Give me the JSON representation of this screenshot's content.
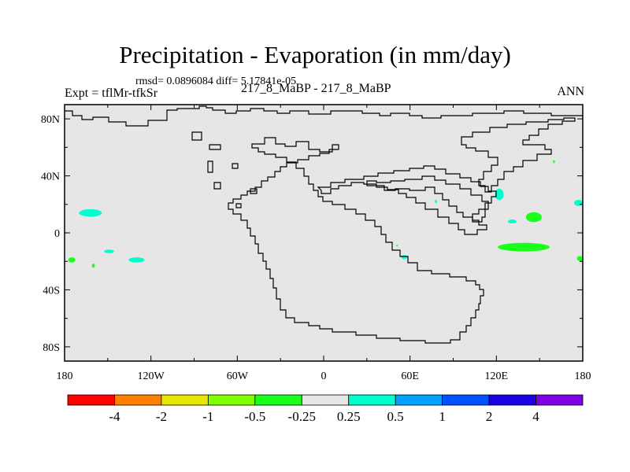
{
  "chart_data": {
    "type": "heatmap",
    "title": "Precipitation - Evaporation (in mm/day)",
    "stats_line": "rmsd= 0.0896084 diff= 5.17841e-05",
    "left_label": "Expt = tflMr-tfkSr",
    "center_label": "217_8_MaBP - 217_8_MaBP",
    "right_label": "ANN",
    "x_axis": {
      "range": [
        -180,
        180
      ],
      "ticks": [
        {
          "v": -180,
          "label": "180"
        },
        {
          "v": -120,
          "label": "120W"
        },
        {
          "v": -60,
          "label": "60W"
        },
        {
          "v": 0,
          "label": "0"
        },
        {
          "v": 60,
          "label": "60E"
        },
        {
          "v": 120,
          "label": "120E"
        },
        {
          "v": 180,
          "label": "180"
        }
      ]
    },
    "y_axis": {
      "range": [
        -90,
        90
      ],
      "ticks": [
        {
          "v": 80,
          "label": "80N"
        },
        {
          "v": 40,
          "label": "40N"
        },
        {
          "v": 0,
          "label": "0"
        },
        {
          "v": -40,
          "label": "40S"
        },
        {
          "v": -80,
          "label": "80S"
        }
      ]
    },
    "background_color": "#e6e6e6",
    "colorbar": {
      "colors": [
        "#ff0000",
        "#ff8000",
        "#e6e600",
        "#80ff00",
        "#1aff1a",
        "#e6e6e6",
        "#00ffcc",
        "#00a0ff",
        "#0050ff",
        "#1a00e6",
        "#8000e6"
      ],
      "labels": [
        "-4",
        "-2",
        "-1",
        "-0.5",
        "-0.25",
        "0.25",
        "0.5",
        "1",
        "2",
        "4"
      ]
    },
    "anomalies": [
      {
        "lon": -162,
        "lat": 14,
        "dlon": 8,
        "dlat": 2.6,
        "color": "#00ffcc"
      },
      {
        "lon": -175,
        "lat": -19,
        "dlon": 2.5,
        "dlat": 1.8,
        "color": "#1aff1a"
      },
      {
        "lon": -160,
        "lat": -23,
        "dlon": 1,
        "dlat": 1.5,
        "color": "#1aff1a"
      },
      {
        "lon": -149,
        "lat": -13,
        "dlon": 3.5,
        "dlat": 1.3,
        "color": "#00ffcc"
      },
      {
        "lon": -130,
        "lat": -19,
        "dlon": 5.5,
        "dlat": 1.8,
        "color": "#00ffcc"
      },
      {
        "lon": 56,
        "lat": -17,
        "dlon": 2,
        "dlat": 1.5,
        "color": "#00ffcc"
      },
      {
        "lon": 78,
        "lat": 22,
        "dlon": 0.7,
        "dlat": 1.2,
        "color": "#00ffcc"
      },
      {
        "lon": 122,
        "lat": 27,
        "dlon": 3,
        "dlat": 4,
        "color": "#00ffcc"
      },
      {
        "lon": 131,
        "lat": 8,
        "dlon": 3,
        "dlat": 1.4,
        "color": "#00ffcc"
      },
      {
        "lon": 146,
        "lat": 11,
        "dlon": 5.5,
        "dlat": 3.5,
        "color": "#1aff1a"
      },
      {
        "lon": 139,
        "lat": -10,
        "dlon": 18,
        "dlat": 3,
        "color": "#1aff1a"
      },
      {
        "lon": 177,
        "lat": 21,
        "dlon": 3,
        "dlat": 2.2,
        "color": "#00ffcc"
      },
      {
        "lon": 178,
        "lat": -18,
        "dlon": 2,
        "dlat": 1.8,
        "color": "#1aff1a"
      },
      {
        "lon": 160,
        "lat": 50,
        "dlon": 0.6,
        "dlat": 1,
        "color": "#1aff1a"
      },
      {
        "lon": 51,
        "lat": -9,
        "dlon": 0.6,
        "dlat": 0.6,
        "color": "#1aff1a"
      }
    ]
  }
}
